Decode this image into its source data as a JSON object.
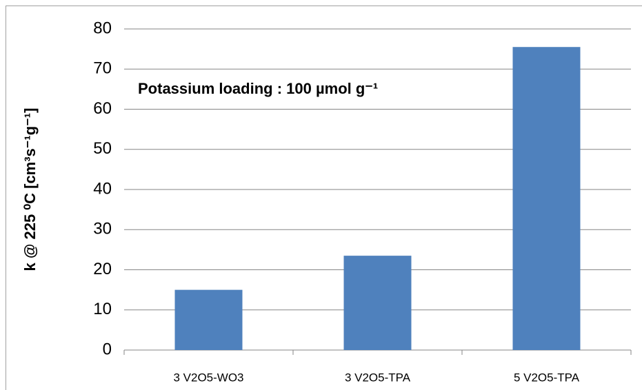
{
  "chart_data": {
    "type": "bar",
    "ylabel": "k @ 225 ⁰C [cm³s⁻¹g⁻¹]",
    "annotation": "Potassium loading : 100 µmol g⁻¹",
    "categories": [
      "3 V2O5-WO3",
      "3 V2O5-TPA",
      "5 V2O5-TPA"
    ],
    "values": [
      15,
      23.5,
      75.5
    ],
    "color": "#4f81bd",
    "ylim": [
      0,
      80
    ],
    "yticks": [
      0,
      10,
      20,
      30,
      40,
      50,
      60,
      70,
      80
    ],
    "grid": true
  }
}
